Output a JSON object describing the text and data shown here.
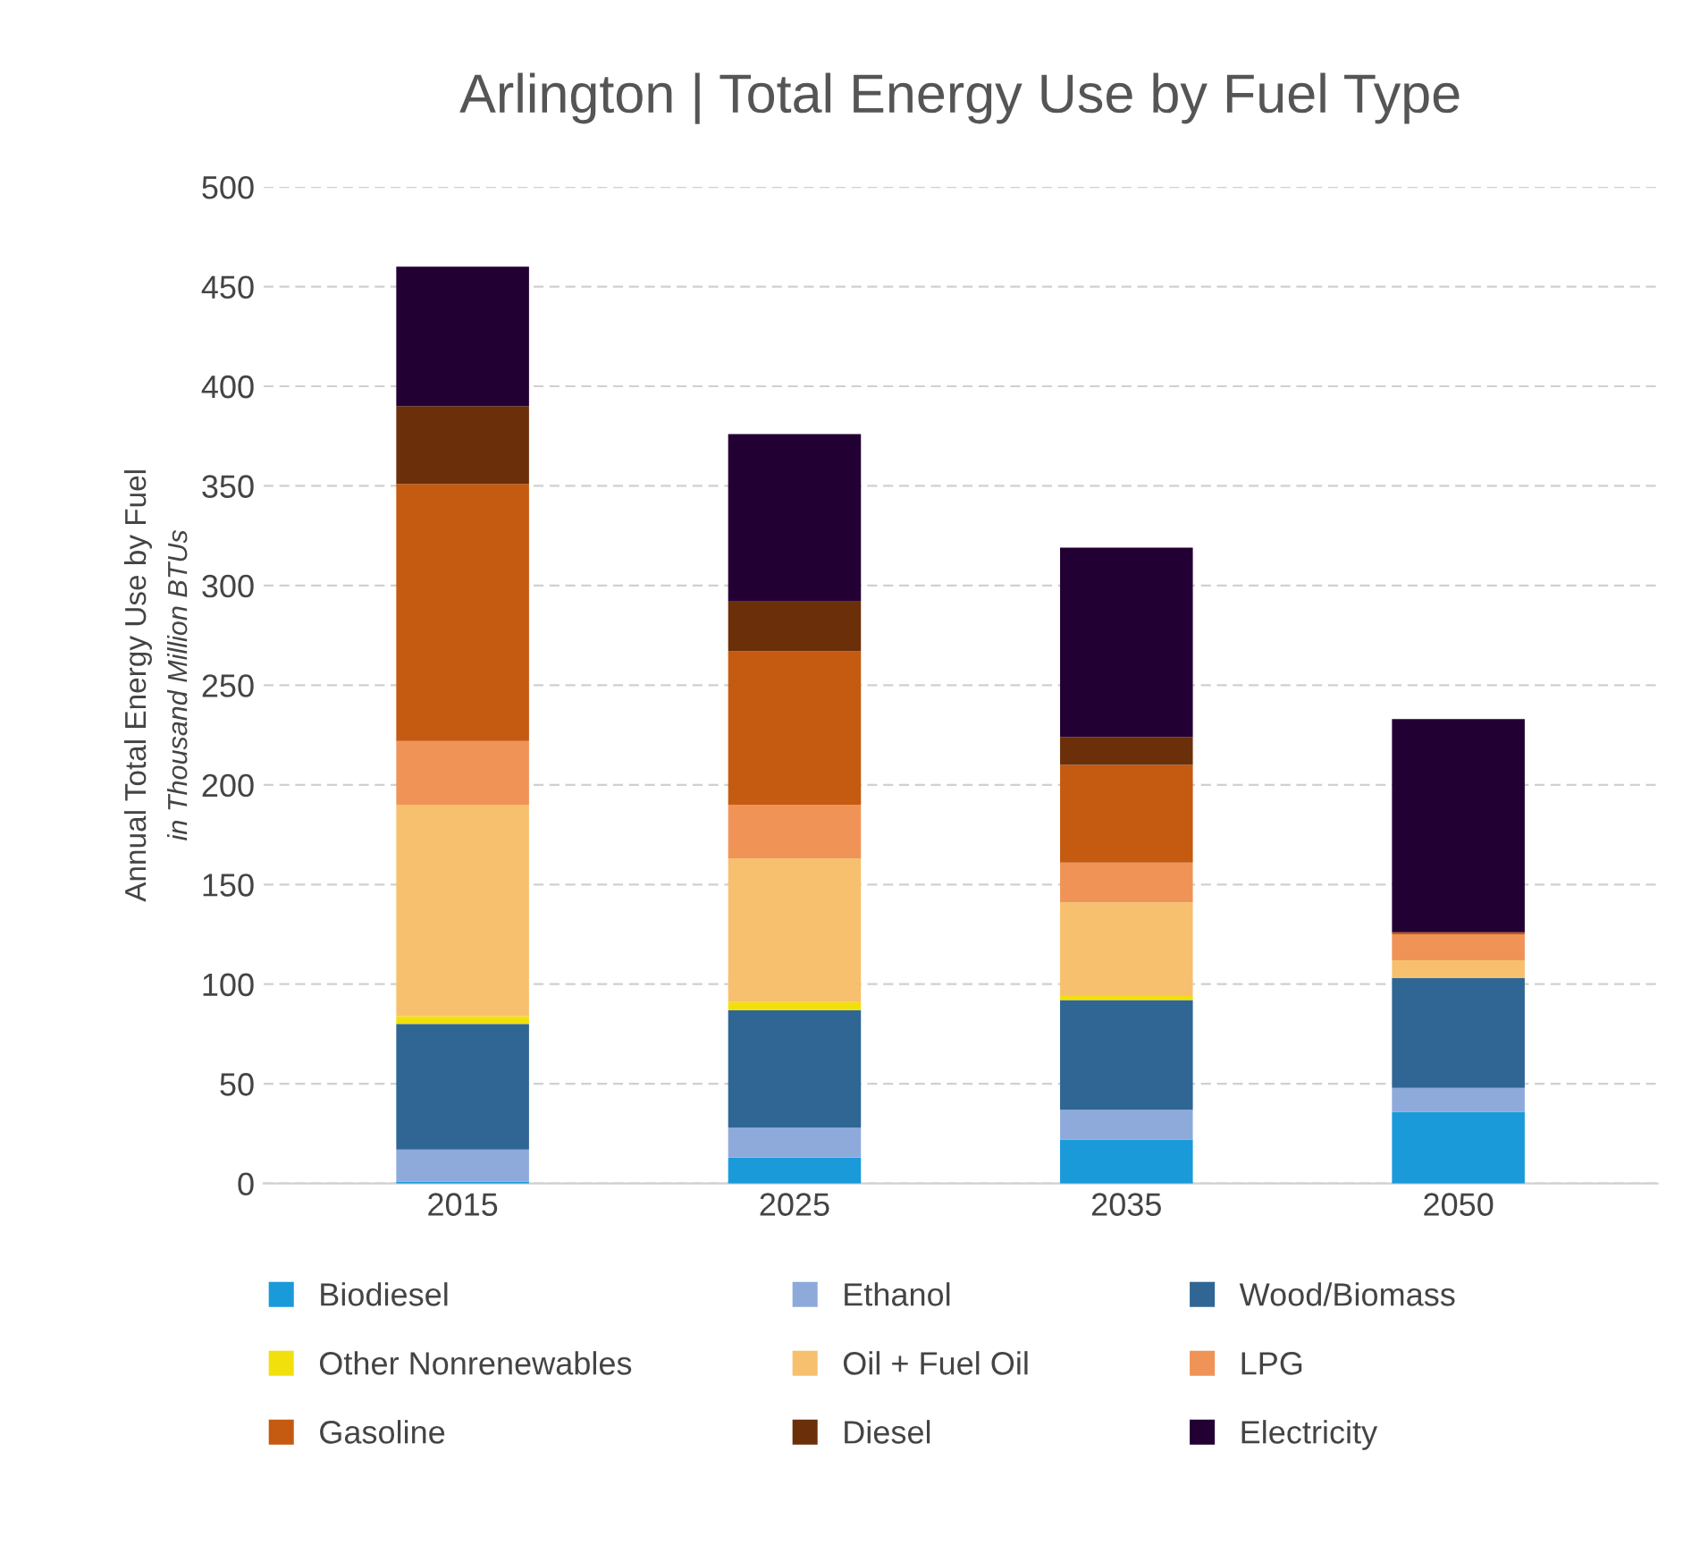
{
  "chart_data": {
    "type": "bar",
    "title": "Arlington | Total Energy Use by Fuel Type",
    "ylabel": "Annual Total Energy Use by Fuel\nin Thousand Million BTUs",
    "categories": [
      "2015",
      "2025",
      "2035",
      "2050"
    ],
    "stacked": true,
    "series": [
      {
        "name": "Biodiesel",
        "color": "#1a9ad9",
        "values": [
          1,
          13,
          22,
          36
        ]
      },
      {
        "name": "Ethanol",
        "color": "#8eaadb",
        "values": [
          16,
          15,
          15,
          12
        ]
      },
      {
        "name": "Wood/Biomass",
        "color": "#2f6694",
        "values": [
          63,
          59,
          55,
          55
        ]
      },
      {
        "name": "Other Nonrenewables",
        "color": "#f2e00c",
        "values": [
          4,
          4,
          2,
          0
        ]
      },
      {
        "name": "Oil + Fuel Oil",
        "color": "#f7c06e",
        "values": [
          106,
          72,
          47,
          9
        ]
      },
      {
        "name": "LPG",
        "color": "#f09357",
        "values": [
          32,
          27,
          20,
          13
        ]
      },
      {
        "name": "Gasoline",
        "color": "#c55a11",
        "values": [
          129,
          77,
          49,
          1
        ]
      },
      {
        "name": "Diesel",
        "color": "#6b300a",
        "values": [
          39,
          25,
          14,
          0
        ]
      },
      {
        "name": "Electricity",
        "color": "#220033",
        "values": [
          70,
          84,
          95,
          107
        ]
      }
    ],
    "ylim": [
      0,
      500
    ],
    "yticks": [
      0,
      50,
      100,
      150,
      200,
      250,
      300,
      350,
      400,
      450,
      500
    ],
    "grid": "y",
    "legend": "bottom"
  }
}
